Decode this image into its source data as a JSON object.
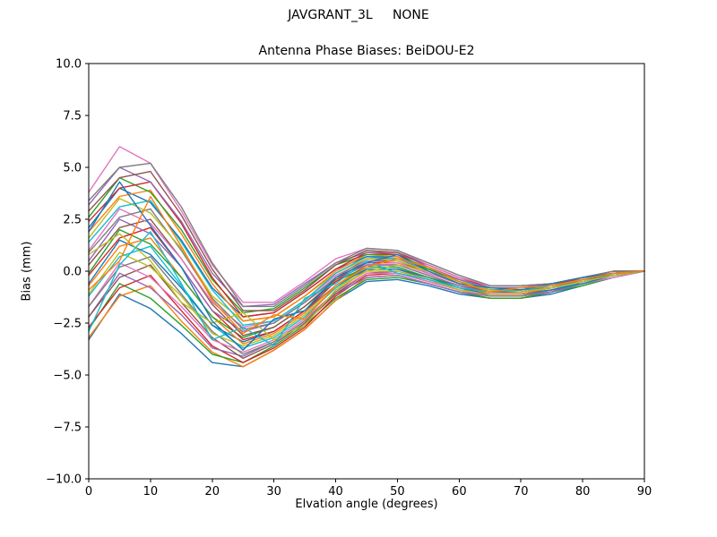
{
  "figure": {
    "suptitle": "JAVGRANT_3L     NONE",
    "background": "#ffffff"
  },
  "chart_data": {
    "type": "line",
    "title": "Antenna Phase Biases: BeiDOU-E2",
    "xlabel": "Elvation angle (degrees)",
    "ylabel": "Bias (mm)",
    "xlim": [
      0,
      90
    ],
    "ylim": [
      -10,
      10
    ],
    "grid": false,
    "legend": "none",
    "frame_color": "#000000",
    "xtick_values": [
      0,
      10,
      20,
      30,
      40,
      50,
      60,
      70,
      80,
      90
    ],
    "xtick_labels": [
      "0",
      "10",
      "20",
      "30",
      "40",
      "50",
      "60",
      "70",
      "80",
      "90"
    ],
    "ytick_values": [
      -10,
      -7.5,
      -5,
      -2.5,
      0,
      2.5,
      5,
      7.5,
      10
    ],
    "ytick_labels": [
      "−10.0",
      "−7.5",
      "−5.0",
      "−2.5",
      "0.0",
      "2.5",
      "5.0",
      "7.5",
      "10.0"
    ],
    "palette": [
      "#1f77b4",
      "#ff7f0e",
      "#2ca02c",
      "#d62728",
      "#9467bd",
      "#8c564b",
      "#e377c2",
      "#7f7f7f",
      "#bcbd22",
      "#17becf"
    ],
    "x": [
      0,
      5,
      10,
      15,
      20,
      25,
      30,
      35,
      40,
      45,
      50,
      55,
      60,
      65,
      70,
      75,
      80,
      85,
      90
    ],
    "series": [
      {
        "values": [
          -3.3,
          -1.1,
          -1.8,
          -3.0,
          -4.4,
          -4.6,
          -3.8,
          -2.8,
          -1.4,
          -0.5,
          -0.4,
          -0.7,
          -1.1,
          -1.3,
          -1.3,
          -1.1,
          -0.7,
          -0.3,
          0.0
        ]
      },
      {
        "values": [
          -3.2,
          -1.2,
          -0.7,
          -2.4,
          -3.9,
          -4.6,
          -3.8,
          -2.8,
          -1.4,
          -0.3,
          -0.2,
          -0.6,
          -1.0,
          -1.3,
          -1.3,
          -1.0,
          -0.5,
          -0.2,
          0.0
        ]
      },
      {
        "values": [
          -2.8,
          -0.6,
          -1.3,
          -2.6,
          -4.0,
          -4.4,
          -3.6,
          -2.6,
          -1.3,
          -0.4,
          -0.3,
          -0.6,
          -1.0,
          -1.3,
          -1.3,
          -1.0,
          -0.7,
          -0.3,
          0.0
        ]
      },
      {
        "values": [
          -2.7,
          -0.8,
          -0.2,
          -1.9,
          -3.6,
          -4.4,
          -3.7,
          -2.7,
          -1.2,
          -0.2,
          -0.1,
          -0.5,
          -0.9,
          -1.2,
          -1.2,
          -1.0,
          -0.5,
          -0.2,
          0.0
        ]
      },
      {
        "values": [
          -2.2,
          -0.1,
          -0.8,
          -2.1,
          -3.7,
          -4.1,
          -3.4,
          -2.4,
          -1.1,
          -0.3,
          -0.2,
          -0.6,
          -1.0,
          -1.2,
          -1.2,
          -1.0,
          -0.6,
          -0.3,
          0.0
        ]
      },
      {
        "values": [
          -2.2,
          -0.3,
          0.3,
          -1.5,
          -3.2,
          -4.2,
          -3.5,
          -2.5,
          -1.1,
          -0.1,
          0.0,
          -0.4,
          -0.9,
          -1.2,
          -1.2,
          -0.9,
          -0.5,
          -0.2,
          0.0
        ]
      },
      {
        "values": [
          -1.7,
          0.4,
          -0.3,
          -1.7,
          -3.3,
          -3.9,
          -3.3,
          -2.3,
          -1.0,
          -0.1,
          -0.1,
          -0.5,
          -0.9,
          -1.2,
          -1.2,
          -0.9,
          -0.6,
          -0.3,
          0.0
        ]
      },
      {
        "values": [
          -1.7,
          0.2,
          0.7,
          -1.1,
          -2.9,
          -4.0,
          -3.4,
          -2.4,
          -1.0,
          0.1,
          0.1,
          -0.4,
          -0.8,
          -1.2,
          -1.2,
          -0.9,
          -0.5,
          -0.2,
          0.0
        ]
      },
      {
        "values": [
          -1.1,
          0.9,
          0.2,
          -1.2,
          -3.0,
          -3.6,
          -3.1,
          -2.1,
          -0.8,
          0.0,
          0.0,
          -0.4,
          -0.9,
          -1.1,
          -1.1,
          -0.9,
          -0.6,
          -0.2,
          0.0
        ]
      },
      {
        "values": [
          -1.2,
          0.7,
          1.2,
          -0.7,
          -2.6,
          -3.7,
          -3.2,
          -2.2,
          -0.8,
          0.2,
          0.2,
          -0.3,
          -0.7,
          -1.1,
          -1.1,
          -0.9,
          -0.5,
          -0.1,
          0.0
        ]
      },
      {
        "values": [
          -0.6,
          1.5,
          0.8,
          -0.8,
          -2.6,
          -3.4,
          -2.9,
          -1.9,
          -0.7,
          0.1,
          0.1,
          -0.3,
          -0.8,
          -1.1,
          -1.1,
          -0.9,
          -0.6,
          -0.2,
          0.0
        ]
      },
      {
        "values": [
          -0.7,
          1.2,
          1.6,
          -0.3,
          -2.2,
          -3.5,
          -3.0,
          -2.0,
          -0.7,
          0.3,
          0.3,
          -0.2,
          -0.7,
          -1.1,
          -1.1,
          -0.8,
          -0.4,
          -0.1,
          0.0
        ]
      },
      {
        "values": [
          -0.1,
          2.0,
          1.3,
          -0.3,
          -2.2,
          -3.2,
          -2.7,
          -1.7,
          -0.5,
          0.2,
          0.2,
          -0.3,
          -0.7,
          -1.0,
          -1.0,
          -0.8,
          -0.5,
          -0.2,
          0.0
        ]
      },
      {
        "values": [
          -0.2,
          1.6,
          2.1,
          0.2,
          -1.9,
          -3.3,
          -2.9,
          -1.9,
          -0.5,
          0.4,
          0.4,
          -0.1,
          -0.6,
          -1.0,
          -1.0,
          -0.8,
          -0.4,
          -0.1,
          0.0
        ]
      },
      {
        "values": [
          0.5,
          2.5,
          1.8,
          0.2,
          -1.9,
          -2.9,
          -2.5,
          -1.5,
          -0.4,
          0.3,
          0.3,
          -0.2,
          -0.7,
          -1.0,
          -1.0,
          -0.8,
          -0.5,
          -0.2,
          0.0
        ]
      },
      {
        "values": [
          0.3,
          2.1,
          2.5,
          0.6,
          -1.6,
          -3.1,
          -2.7,
          -1.7,
          -0.4,
          0.5,
          0.5,
          -0.1,
          -0.6,
          -1.0,
          -1.0,
          -0.8,
          -0.4,
          -0.1,
          0.0
        ]
      },
      {
        "values": [
          1.0,
          3.0,
          2.3,
          0.6,
          -1.5,
          -2.7,
          -2.4,
          -1.4,
          -0.2,
          0.5,
          0.4,
          -0.1,
          -0.6,
          -0.9,
          -0.9,
          -0.8,
          -0.5,
          -0.2,
          0.0
        ]
      },
      {
        "values": [
          0.9,
          2.6,
          3.0,
          1.0,
          -1.3,
          -2.8,
          -2.5,
          -1.5,
          -0.3,
          0.6,
          0.6,
          0.0,
          -0.5,
          -0.9,
          -0.9,
          -0.8,
          -0.4,
          -0.1,
          0.0
        ]
      },
      {
        "values": [
          1.6,
          3.5,
          2.8,
          1.1,
          -1.2,
          -2.4,
          -2.2,
          -1.2,
          -0.1,
          0.6,
          0.5,
          0.0,
          -0.6,
          -0.9,
          -0.9,
          -0.7,
          -0.4,
          -0.2,
          0.0
        ]
      },
      {
        "values": [
          1.4,
          3.1,
          3.4,
          1.4,
          -0.9,
          -2.6,
          -2.4,
          -1.4,
          -0.1,
          0.7,
          0.6,
          0.1,
          -0.4,
          -0.9,
          -0.9,
          -0.7,
          -0.3,
          -0.1,
          0.0
        ]
      },
      {
        "values": [
          2.1,
          4.0,
          3.3,
          1.5,
          -0.8,
          -2.2,
          -2.0,
          -1.0,
          0.1,
          0.7,
          0.7,
          0.1,
          -0.5,
          -0.9,
          -0.9,
          -0.7,
          -0.4,
          -0.2,
          0.0
        ]
      },
      {
        "values": [
          1.9,
          3.6,
          3.9,
          1.8,
          -0.6,
          -2.4,
          -2.2,
          -1.2,
          0.0,
          0.8,
          0.7,
          0.2,
          -0.4,
          -0.8,
          -0.8,
          -0.7,
          -0.3,
          0.0,
          0.0
        ]
      },
      {
        "values": [
          2.6,
          4.5,
          3.8,
          2.0,
          -0.4,
          -2.0,
          -1.8,
          -0.8,
          0.3,
          0.8,
          0.8,
          0.1,
          -0.4,
          -0.8,
          -0.8,
          -0.6,
          -0.4,
          -0.1,
          0.0
        ]
      },
      {
        "values": [
          2.4,
          4.0,
          4.3,
          2.3,
          -0.3,
          -2.2,
          -2.0,
          -1.0,
          0.1,
          0.9,
          0.8,
          0.3,
          -0.3,
          -0.8,
          -0.8,
          -0.7,
          -0.3,
          0.0,
          0.0
        ]
      },
      {
        "values": [
          3.2,
          5.0,
          4.3,
          2.4,
          -0.1,
          -1.7,
          -1.6,
          -0.6,
          0.4,
          0.9,
          0.9,
          0.2,
          -0.4,
          -0.8,
          -0.8,
          -0.6,
          -0.3,
          -0.1,
          0.0
        ]
      },
      {
        "values": [
          2.9,
          4.5,
          4.8,
          2.7,
          0.1,
          -1.9,
          -1.9,
          -0.9,
          0.3,
          1.0,
          0.9,
          0.3,
          -0.3,
          -0.7,
          -0.7,
          -0.6,
          -0.3,
          0.0,
          0.0
        ]
      },
      {
        "values": [
          3.8,
          6.0,
          5.2,
          2.9,
          0.3,
          -1.5,
          -1.5,
          -0.5,
          0.6,
          1.1,
          1.0,
          0.3,
          -0.3,
          -0.7,
          -0.7,
          -0.6,
          -0.3,
          -0.1,
          0.0
        ]
      },
      {
        "values": [
          3.4,
          5.0,
          5.2,
          3.1,
          0.4,
          -1.7,
          -1.7,
          -0.7,
          0.4,
          1.1,
          1.0,
          0.4,
          -0.2,
          -0.7,
          -0.7,
          -0.6,
          -0.3,
          0.0,
          0.0
        ]
      },
      {
        "values": [
          0.8,
          1.8,
          0.5,
          -1.5,
          -2.5,
          -2.0,
          -3.3,
          -2.6,
          -0.9,
          0.0,
          0.3,
          0.0,
          -0.5,
          -0.9,
          -1.0,
          -0.8,
          -0.5,
          -0.2,
          0.0
        ]
      },
      {
        "values": [
          -2.9,
          0.3,
          1.9,
          -0.6,
          -3.3,
          -2.7,
          -3.6,
          -1.3,
          -0.6,
          0.5,
          -0.1,
          -0.4,
          -0.8,
          -1.0,
          -0.9,
          -0.7,
          -0.4,
          -0.1,
          0.0
        ]
      },
      {
        "values": [
          1.9,
          4.3,
          2.2,
          0.2,
          -2.4,
          -3.8,
          -2.3,
          -1.9,
          -0.3,
          0.4,
          0.8,
          0.0,
          -0.6,
          -0.8,
          -0.9,
          -0.6,
          -0.3,
          -0.1,
          0.0
        ]
      },
      {
        "values": [
          -0.9,
          0.5,
          3.6,
          1.2,
          -1.4,
          -3.0,
          -2.1,
          -2.3,
          -0.7,
          0.2,
          0.6,
          0.2,
          -0.5,
          -1.0,
          -0.8,
          -0.7,
          -0.4,
          -0.1,
          0.0
        ]
      }
    ]
  }
}
